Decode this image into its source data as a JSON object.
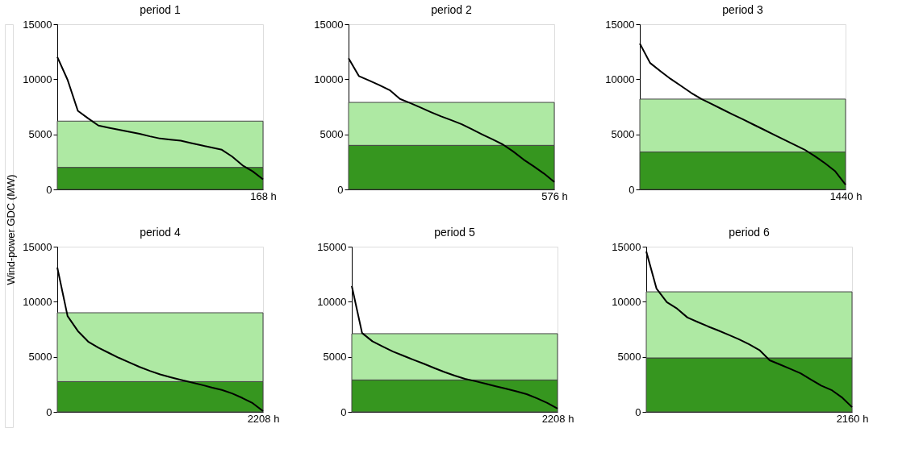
{
  "chart_data": [
    {
      "type": "line",
      "title": "period 1",
      "ylabel": "Wind-power GDC (MW)",
      "categories": [
        null,
        null,
        null,
        null,
        null,
        null,
        null,
        null,
        null,
        null,
        null,
        null,
        null,
        null,
        null,
        null,
        null,
        null,
        null,
        null,
        "168 h"
      ],
      "series": [
        {
          "color": "#000000",
          "values": [
            12030,
            9950,
            7130,
            6450,
            5800,
            5600,
            5420,
            5230,
            5050,
            4820,
            4620,
            4520,
            4420,
            4210,
            4000,
            3800,
            3600,
            2980,
            2190,
            1640,
            920
          ]
        }
      ],
      "ylim": [
        0,
        15000
      ],
      "yticks": [
        0,
        5000,
        10000,
        15000
      ],
      "bands": [
        {
          "axis": "y",
          "from": 0,
          "to": 2000,
          "color": "#36961f"
        },
        {
          "axis": "y",
          "from": 2000,
          "to": 6200,
          "color": "#aee9a3"
        }
      ]
    },
    {
      "type": "line",
      "title": "period 2",
      "categories": [
        null,
        null,
        null,
        null,
        null,
        null,
        null,
        null,
        null,
        null,
        null,
        null,
        null,
        null,
        null,
        null,
        null,
        null,
        null,
        null,
        "576 h"
      ],
      "series": [
        {
          "color": "#000000",
          "values": [
            11910,
            10290,
            9890,
            9470,
            9010,
            8210,
            7840,
            7430,
            7020,
            6630,
            6280,
            5920,
            5460,
            4990,
            4540,
            4080,
            3450,
            2720,
            2090,
            1440,
            680
          ]
        }
      ],
      "ylim": [
        0,
        15000
      ],
      "yticks": [
        0,
        5000,
        10000,
        15000
      ],
      "bands": [
        {
          "axis": "y",
          "from": 0,
          "to": 4000,
          "color": "#36961f"
        },
        {
          "axis": "y",
          "from": 4000,
          "to": 7900,
          "color": "#aee9a3"
        }
      ]
    },
    {
      "type": "line",
      "title": "period 3",
      "categories": [
        null,
        null,
        null,
        null,
        null,
        null,
        null,
        null,
        null,
        null,
        null,
        null,
        null,
        null,
        null,
        null,
        null,
        null,
        null,
        null,
        "1440 h"
      ],
      "series": [
        {
          "color": "#000000",
          "values": [
            13240,
            11480,
            10740,
            10030,
            9400,
            8760,
            8200,
            7740,
            7280,
            6820,
            6370,
            5910,
            5450,
            4990,
            4530,
            4070,
            3620,
            3030,
            2380,
            1640,
            430
          ]
        }
      ],
      "ylim": [
        0,
        15000
      ],
      "yticks": [
        0,
        5000,
        10000,
        15000
      ],
      "bands": [
        {
          "axis": "y",
          "from": 0,
          "to": 3400,
          "color": "#36961f"
        },
        {
          "axis": "y",
          "from": 3400,
          "to": 8200,
          "color": "#aee9a3"
        }
      ]
    },
    {
      "type": "line",
      "title": "period 4",
      "categories": [
        null,
        null,
        null,
        null,
        null,
        null,
        null,
        null,
        null,
        null,
        null,
        null,
        null,
        null,
        null,
        null,
        null,
        null,
        null,
        null,
        "2208 h"
      ],
      "series": [
        {
          "color": "#000000",
          "values": [
            13120,
            8700,
            7340,
            6380,
            5830,
            5360,
            4900,
            4490,
            4080,
            3720,
            3400,
            3150,
            2910,
            2690,
            2460,
            2220,
            1990,
            1670,
            1260,
            790,
            70
          ]
        }
      ],
      "ylim": [
        0,
        15000
      ],
      "yticks": [
        0,
        5000,
        10000,
        15000
      ],
      "bands": [
        {
          "axis": "y",
          "from": 0,
          "to": 2750,
          "color": "#36961f"
        },
        {
          "axis": "y",
          "from": 2750,
          "to": 9000,
          "color": "#aee9a3"
        }
      ]
    },
    {
      "type": "line",
      "title": "period 5",
      "categories": [
        null,
        null,
        null,
        null,
        null,
        null,
        null,
        null,
        null,
        null,
        null,
        null,
        null,
        null,
        null,
        null,
        null,
        null,
        null,
        null,
        "2208 h"
      ],
      "series": [
        {
          "color": "#000000",
          "values": [
            11430,
            7160,
            6410,
            5930,
            5480,
            5100,
            4730,
            4370,
            3990,
            3620,
            3290,
            3000,
            2790,
            2560,
            2330,
            2100,
            1860,
            1610,
            1230,
            820,
            310
          ]
        }
      ],
      "ylim": [
        0,
        15000
      ],
      "yticks": [
        0,
        5000,
        10000,
        15000
      ],
      "bands": [
        {
          "axis": "y",
          "from": 0,
          "to": 2900,
          "color": "#36961f"
        },
        {
          "axis": "y",
          "from": 2900,
          "to": 7100,
          "color": "#aee9a3"
        }
      ]
    },
    {
      "type": "line",
      "title": "period 6",
      "categories": [
        null,
        null,
        null,
        null,
        null,
        null,
        null,
        null,
        null,
        null,
        null,
        null,
        null,
        null,
        null,
        null,
        null,
        null,
        null,
        null,
        "2160 h"
      ],
      "series": [
        {
          "color": "#000000",
          "values": [
            14570,
            11180,
            9960,
            9370,
            8570,
            8160,
            7760,
            7390,
            7000,
            6590,
            6130,
            5610,
            4680,
            4300,
            3910,
            3500,
            2940,
            2390,
            1990,
            1330,
            430
          ]
        }
      ],
      "ylim": [
        0,
        15000
      ],
      "yticks": [
        0,
        5000,
        10000,
        15000
      ],
      "bands": [
        {
          "axis": "y",
          "from": 0,
          "to": 4900,
          "color": "#36961f"
        },
        {
          "axis": "y",
          "from": 4900,
          "to": 10900,
          "color": "#aee9a3"
        }
      ]
    }
  ]
}
